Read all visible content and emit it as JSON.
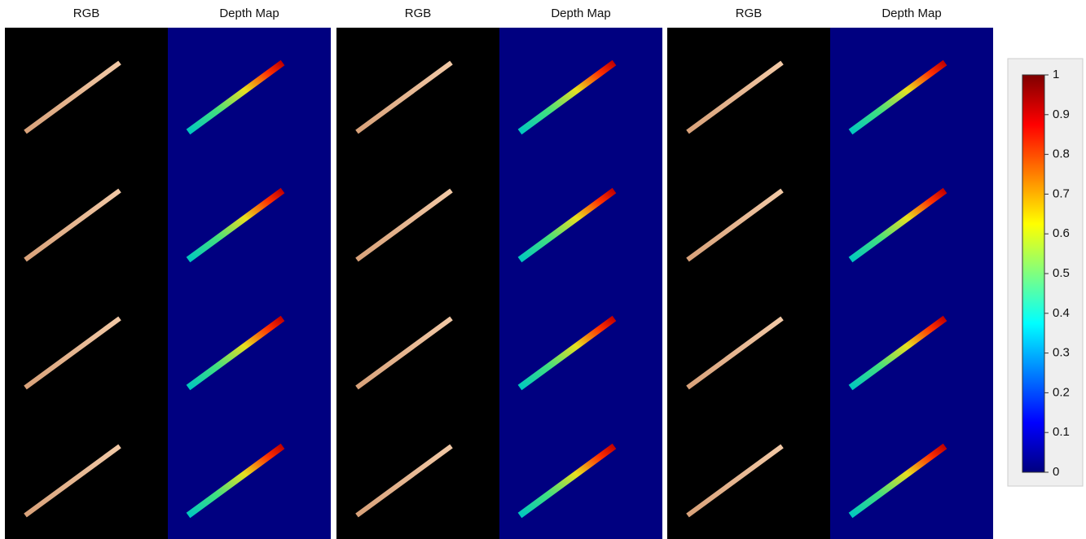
{
  "columns": [
    "RGB",
    "Depth Map",
    "RGB",
    "Depth Map",
    "RGB",
    "Depth Map"
  ],
  "colorbar": {
    "lim": [
      0,
      1
    ],
    "ticks": [
      0,
      0.1,
      0.2,
      0.3,
      0.4,
      0.5,
      0.6,
      0.7,
      0.8,
      0.9,
      1
    ]
  }
}
